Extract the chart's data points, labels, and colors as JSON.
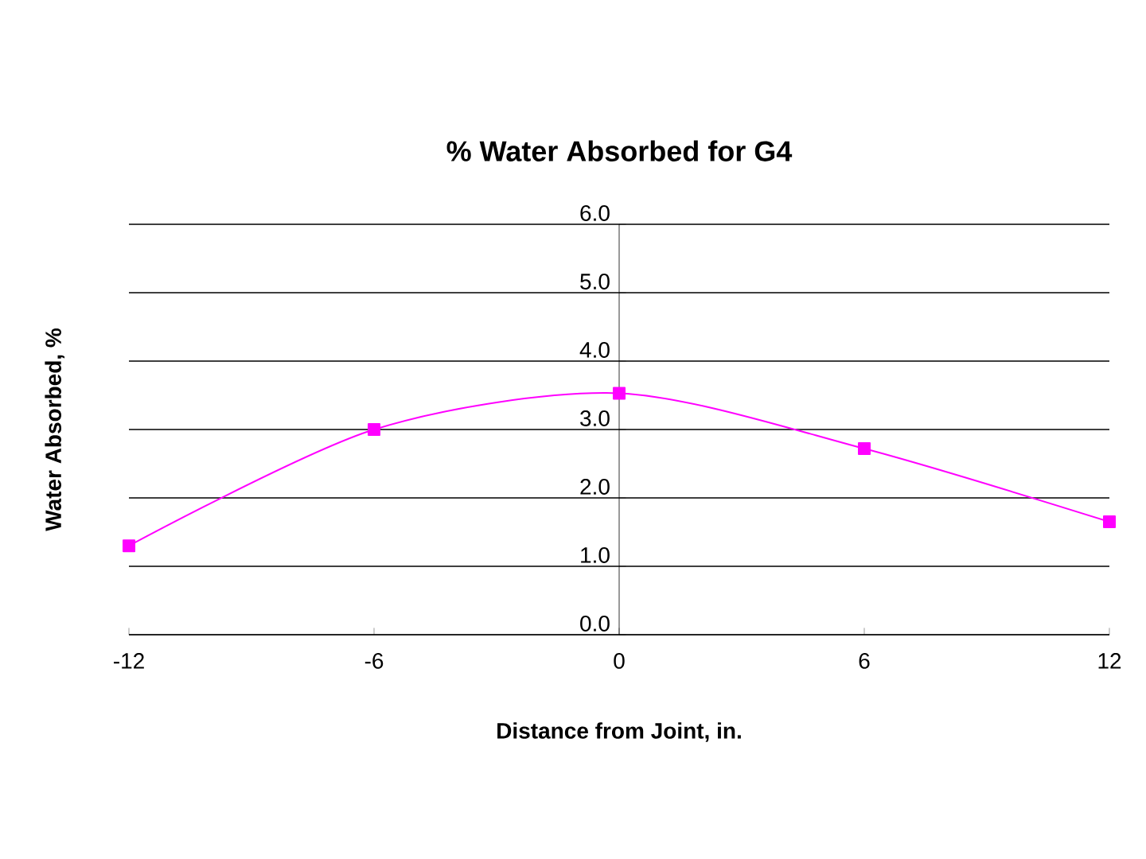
{
  "chart_data": {
    "type": "line",
    "title": "% Water Absorbed for G4",
    "xlabel": "Distance from Joint, in.",
    "ylabel": "Water Absorbed, %",
    "x": [
      -12,
      -6,
      0,
      6,
      12
    ],
    "series": [
      {
        "color": "#ff00ff",
        "values": [
          1.3,
          3.0,
          3.53,
          2.72,
          1.65
        ]
      }
    ],
    "xlim": [
      -12,
      12
    ],
    "xticks": [
      -12,
      -6,
      0,
      6,
      12
    ],
    "ylim": [
      0,
      6
    ],
    "yticks": [
      {
        "value": 0,
        "label": "0.0"
      },
      {
        "value": 1,
        "label": "1.0"
      },
      {
        "value": 2,
        "label": "2.0"
      },
      {
        "value": 3,
        "label": "3.0"
      },
      {
        "value": 4,
        "label": "4.0"
      },
      {
        "value": 5,
        "label": "5.0"
      },
      {
        "value": 6,
        "label": "6.0"
      }
    ],
    "grid": "y",
    "marker": "square",
    "line_style": "solid"
  }
}
